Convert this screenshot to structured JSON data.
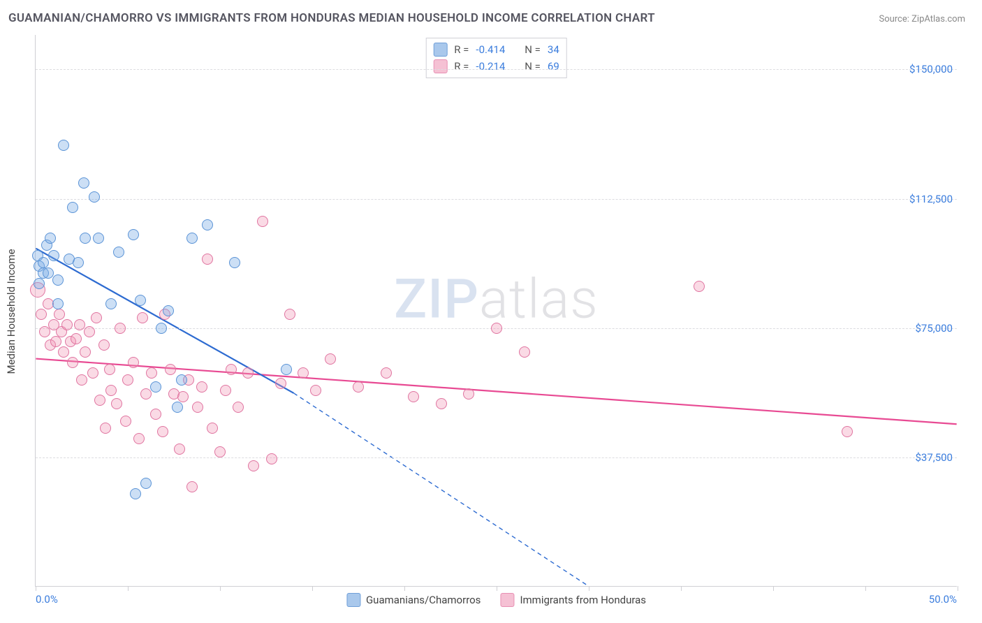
{
  "title": "GUAMANIAN/CHAMORRO VS IMMIGRANTS FROM HONDURAS MEDIAN HOUSEHOLD INCOME CORRELATION CHART",
  "source": "Source: ZipAtlas.com",
  "watermark": {
    "zip": "ZIP",
    "atlas": "atlas"
  },
  "chart": {
    "type": "scatter",
    "background_color": "#ffffff",
    "grid_color": "#dcdce0",
    "axis_color": "#cfcfd4",
    "tick_label_color": "#3b7ddd",
    "axis_title_color": "#444444",
    "y_axis_title": "Median Household Income",
    "x_min": 0.0,
    "x_max": 50.0,
    "x_label_min": "0.0%",
    "x_label_max": "50.0%",
    "x_tick_step": 5.0,
    "y_min": 0,
    "y_max": 160000,
    "y_grid_values": [
      37500,
      75000,
      112500,
      150000
    ],
    "y_grid_labels": [
      "$37,500",
      "$75,000",
      "$112,500",
      "$150,000"
    ],
    "point_radius": 8,
    "point_border_width": 1.2,
    "trend_width_solid": 2.2,
    "trend_width_dash": 1.4,
    "series": [
      {
        "id": "guamanian",
        "name": "Guamanians/Chamorros",
        "fill": "rgba(120,170,230,0.38)",
        "stroke": "#5a93d6",
        "swatch_fill": "#a9c8ec",
        "swatch_border": "#6f9fd8",
        "trend_color": "#2d6bd1",
        "R": "-0.414",
        "N": "34",
        "trend": {
          "x1": 0,
          "y1": 98000,
          "x2": 14,
          "y2": 56000,
          "xext": 30,
          "yext": 0
        },
        "points": [
          {
            "x": 0.1,
            "y": 96000
          },
          {
            "x": 0.2,
            "y": 93000
          },
          {
            "x": 0.2,
            "y": 88000
          },
          {
            "x": 0.4,
            "y": 94000
          },
          {
            "x": 0.4,
            "y": 91000
          },
          {
            "x": 0.6,
            "y": 99000
          },
          {
            "x": 0.7,
            "y": 91000
          },
          {
            "x": 0.8,
            "y": 101000
          },
          {
            "x": 1.0,
            "y": 96000
          },
          {
            "x": 1.2,
            "y": 89000
          },
          {
            "x": 1.2,
            "y": 82000
          },
          {
            "x": 1.5,
            "y": 128000
          },
          {
            "x": 1.8,
            "y": 95000
          },
          {
            "x": 2.0,
            "y": 110000
          },
          {
            "x": 2.3,
            "y": 94000
          },
          {
            "x": 2.6,
            "y": 117000
          },
          {
            "x": 2.7,
            "y": 101000
          },
          {
            "x": 3.2,
            "y": 113000
          },
          {
            "x": 3.4,
            "y": 101000
          },
          {
            "x": 4.1,
            "y": 82000
          },
          {
            "x": 4.5,
            "y": 97000
          },
          {
            "x": 5.3,
            "y": 102000
          },
          {
            "x": 5.4,
            "y": 27000
          },
          {
            "x": 5.7,
            "y": 83000
          },
          {
            "x": 6.0,
            "y": 30000
          },
          {
            "x": 6.5,
            "y": 58000
          },
          {
            "x": 6.8,
            "y": 75000
          },
          {
            "x": 7.2,
            "y": 80000
          },
          {
            "x": 7.9,
            "y": 60000
          },
          {
            "x": 7.7,
            "y": 52000
          },
          {
            "x": 8.5,
            "y": 101000
          },
          {
            "x": 9.3,
            "y": 105000
          },
          {
            "x": 10.8,
            "y": 94000
          },
          {
            "x": 13.6,
            "y": 63000
          }
        ]
      },
      {
        "id": "honduras",
        "name": "Immigrants from Honduras",
        "fill": "rgba(240,150,180,0.35)",
        "stroke": "#e074a0",
        "swatch_fill": "#f5c1d4",
        "swatch_border": "#e88fb3",
        "trend_color": "#e84a93",
        "R": "-0.214",
        "N": "69",
        "trend": {
          "x1": 0,
          "y1": 66000,
          "x2": 50,
          "y2": 47000
        },
        "points": [
          {
            "x": 0.1,
            "y": 86000,
            "r": 11
          },
          {
            "x": 0.3,
            "y": 79000
          },
          {
            "x": 0.5,
            "y": 74000
          },
          {
            "x": 0.7,
            "y": 82000
          },
          {
            "x": 0.8,
            "y": 70000
          },
          {
            "x": 1.0,
            "y": 76000
          },
          {
            "x": 1.1,
            "y": 71000
          },
          {
            "x": 1.3,
            "y": 79000
          },
          {
            "x": 1.4,
            "y": 74000
          },
          {
            "x": 1.5,
            "y": 68000
          },
          {
            "x": 1.7,
            "y": 76000
          },
          {
            "x": 1.9,
            "y": 71000
          },
          {
            "x": 2.0,
            "y": 65000
          },
          {
            "x": 2.2,
            "y": 72000
          },
          {
            "x": 2.4,
            "y": 76000
          },
          {
            "x": 2.5,
            "y": 60000
          },
          {
            "x": 2.7,
            "y": 68000
          },
          {
            "x": 2.9,
            "y": 74000
          },
          {
            "x": 3.1,
            "y": 62000
          },
          {
            "x": 3.3,
            "y": 78000
          },
          {
            "x": 3.5,
            "y": 54000
          },
          {
            "x": 3.7,
            "y": 70000
          },
          {
            "x": 3.8,
            "y": 46000
          },
          {
            "x": 4.0,
            "y": 63000
          },
          {
            "x": 4.1,
            "y": 57000
          },
          {
            "x": 4.4,
            "y": 53000
          },
          {
            "x": 4.6,
            "y": 75000
          },
          {
            "x": 4.9,
            "y": 48000
          },
          {
            "x": 5.0,
            "y": 60000
          },
          {
            "x": 5.3,
            "y": 65000
          },
          {
            "x": 5.6,
            "y": 43000
          },
          {
            "x": 5.8,
            "y": 78000
          },
          {
            "x": 6.0,
            "y": 56000
          },
          {
            "x": 6.3,
            "y": 62000
          },
          {
            "x": 6.5,
            "y": 50000
          },
          {
            "x": 6.9,
            "y": 45000
          },
          {
            "x": 7.0,
            "y": 79000
          },
          {
            "x": 7.3,
            "y": 63000
          },
          {
            "x": 7.5,
            "y": 56000
          },
          {
            "x": 7.8,
            "y": 40000
          },
          {
            "x": 8.0,
            "y": 55000
          },
          {
            "x": 8.3,
            "y": 60000
          },
          {
            "x": 8.5,
            "y": 29000
          },
          {
            "x": 8.8,
            "y": 52000
          },
          {
            "x": 9.0,
            "y": 58000
          },
          {
            "x": 9.3,
            "y": 95000
          },
          {
            "x": 9.6,
            "y": 46000
          },
          {
            "x": 10.0,
            "y": 39000
          },
          {
            "x": 10.3,
            "y": 57000
          },
          {
            "x": 10.6,
            "y": 63000
          },
          {
            "x": 11.0,
            "y": 52000
          },
          {
            "x": 11.5,
            "y": 62000
          },
          {
            "x": 11.8,
            "y": 35000
          },
          {
            "x": 12.3,
            "y": 106000
          },
          {
            "x": 12.8,
            "y": 37000
          },
          {
            "x": 13.3,
            "y": 59000
          },
          {
            "x": 13.8,
            "y": 79000
          },
          {
            "x": 14.5,
            "y": 62000
          },
          {
            "x": 15.2,
            "y": 57000
          },
          {
            "x": 16.0,
            "y": 66000
          },
          {
            "x": 17.5,
            "y": 58000
          },
          {
            "x": 19.0,
            "y": 62000
          },
          {
            "x": 20.5,
            "y": 55000
          },
          {
            "x": 22.0,
            "y": 53000
          },
          {
            "x": 23.5,
            "y": 56000
          },
          {
            "x": 25.0,
            "y": 75000
          },
          {
            "x": 26.5,
            "y": 68000
          },
          {
            "x": 36.0,
            "y": 87000
          },
          {
            "x": 44.0,
            "y": 45000
          }
        ]
      }
    ]
  },
  "legend_top": {
    "R_label": "R =",
    "N_label": "N ="
  }
}
